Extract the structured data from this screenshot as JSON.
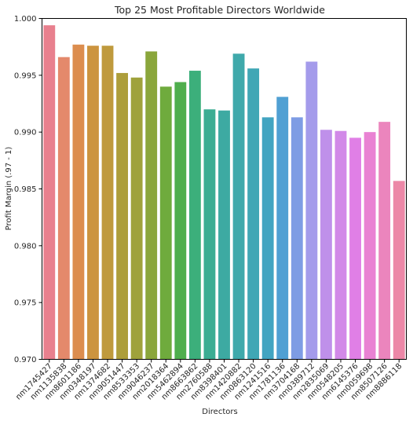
{
  "chart_data": {
    "type": "bar",
    "title": "Top 25 Most Profitable Directors Worldwide",
    "xlabel": "Directors",
    "ylabel": "Profit Margin (.97 - 1)",
    "ylim": [
      0.97,
      1.0
    ],
    "yticks": [
      "0.970",
      "0.975",
      "0.980",
      "0.985",
      "0.990",
      "0.995",
      "1.000"
    ],
    "categories": [
      "nm1745427",
      "nm1135838",
      "nm8601186",
      "nm0348197",
      "nm1374682",
      "nm9051447",
      "nm8533353",
      "nm9046237",
      "nm2018364",
      "nm5462894",
      "nm8663862",
      "nm2760588",
      "nm8398401",
      "nm1420882",
      "nm0863120",
      "nm1241516",
      "nm1781136",
      "nm3704168",
      "nm0389712",
      "nm2835069",
      "nm0548205",
      "nm6145376",
      "nm0059698",
      "nm8507126",
      "nm8886118"
    ],
    "values": [
      0.9994,
      0.9966,
      0.9977,
      0.9976,
      0.9976,
      0.9952,
      0.9948,
      0.9971,
      0.994,
      0.9944,
      0.9954,
      0.992,
      0.9919,
      0.9969,
      0.9956,
      0.9913,
      0.9931,
      0.9913,
      0.9962,
      0.9902,
      0.9901,
      0.9895,
      0.99,
      0.9909,
      0.9857
    ],
    "colors": [
      "#e8808e",
      "#e4896b",
      "#dc8d4e",
      "#cc943f",
      "#bf9a3d",
      "#ad9e3b",
      "#9fa23b",
      "#8aa63b",
      "#6fab3d",
      "#4fae4d",
      "#3caf7b",
      "#3cad93",
      "#3daaa2",
      "#3fa9ab",
      "#40a7b5",
      "#42a4c1",
      "#50a0d3",
      "#7e9ce4",
      "#a49beb",
      "#bf90ea",
      "#d289e8",
      "#e07fe6",
      "#e982d3",
      "#eb85bd",
      "#ec87a7"
    ],
    "grid": false
  }
}
